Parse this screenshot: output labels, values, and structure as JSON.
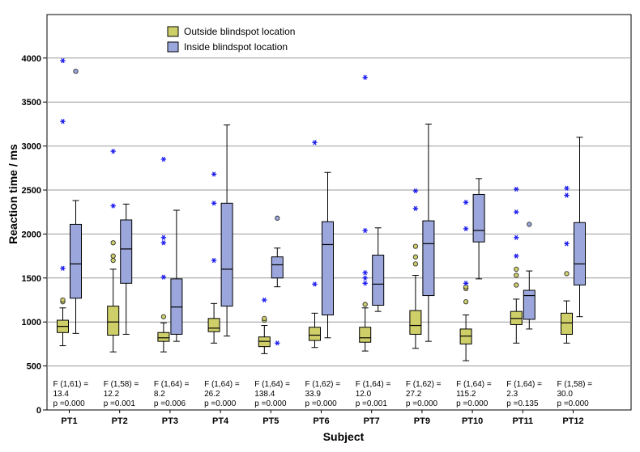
{
  "chart_data": {
    "type": "box",
    "xlabel": "Subject",
    "ylabel": "Reaction time / ms",
    "ylim": [
      0,
      4300
    ],
    "yticks": [
      0,
      500,
      1000,
      1500,
      2000,
      2500,
      3000,
      3500,
      4000
    ],
    "grid": true,
    "legend_position": "top-left",
    "colors": {
      "outside": "#cfcf6a",
      "inside": "#9aa6dc",
      "outlier_star": "#1a1aee"
    },
    "series": [
      {
        "name": "Outside blindspot location",
        "key": "outside"
      },
      {
        "name": "Inside blindspot location",
        "key": "inside"
      }
    ],
    "categories": [
      "PT1",
      "PT2",
      "PT3",
      "PT4",
      "PT5",
      "PT6",
      "PT7",
      "PT9",
      "PT10",
      "PT11",
      "PT12"
    ],
    "boxes": {
      "outside": [
        {
          "min": 730,
          "q1": 880,
          "median": 950,
          "q3": 1020,
          "max": 1160,
          "outliers": [
            1230,
            1250
          ],
          "extremes": [
            1610,
            3280,
            3970
          ]
        },
        {
          "min": 660,
          "q1": 850,
          "median": 1000,
          "q3": 1180,
          "max": 1600,
          "outliers": [
            1700,
            1750,
            1900
          ],
          "extremes": [
            2320,
            2940
          ]
        },
        {
          "min": 660,
          "q1": 780,
          "median": 820,
          "q3": 880,
          "max": 990,
          "outliers": [
            1060
          ],
          "extremes": [
            1510,
            1900,
            1960,
            2850
          ]
        },
        {
          "min": 760,
          "q1": 890,
          "median": 930,
          "q3": 1040,
          "max": 1210,
          "outliers": [],
          "extremes": [
            1700,
            2350,
            2680
          ]
        },
        {
          "min": 640,
          "q1": 720,
          "median": 780,
          "q3": 830,
          "max": 960,
          "outliers": [
            1020,
            1040
          ],
          "extremes": [
            1250
          ]
        },
        {
          "min": 710,
          "q1": 790,
          "median": 850,
          "q3": 940,
          "max": 1100,
          "outliers": [],
          "extremes": [
            1430,
            3040
          ]
        },
        {
          "min": 670,
          "q1": 770,
          "median": 820,
          "q3": 940,
          "max": 1160,
          "outliers": [
            1200
          ],
          "extremes": [
            1440,
            1500,
            1560,
            2040,
            3780
          ]
        },
        {
          "min": 700,
          "q1": 860,
          "median": 960,
          "q3": 1130,
          "max": 1530,
          "outliers": [
            1660,
            1740,
            1860
          ],
          "extremes": [
            2290,
            2490
          ]
        },
        {
          "min": 560,
          "q1": 750,
          "median": 840,
          "q3": 920,
          "max": 1080,
          "outliers": [
            1230,
            1380,
            1400
          ],
          "extremes": [
            1440,
            2060,
            2360
          ]
        },
        {
          "min": 760,
          "q1": 970,
          "median": 1040,
          "q3": 1120,
          "max": 1260,
          "outliers": [
            1420,
            1530,
            1600
          ],
          "extremes": [
            1750,
            1960,
            2250,
            2510
          ]
        },
        {
          "min": 760,
          "q1": 860,
          "median": 990,
          "q3": 1100,
          "max": 1240,
          "outliers": [
            1550
          ],
          "extremes": [
            1890,
            2440,
            2520
          ]
        }
      ],
      "inside": [
        {
          "min": 870,
          "q1": 1270,
          "median": 1660,
          "q3": 2110,
          "max": 2380,
          "outliers": [
            3850
          ],
          "extremes": []
        },
        {
          "min": 860,
          "q1": 1440,
          "median": 1830,
          "q3": 2160,
          "max": 2340,
          "outliers": [],
          "extremes": []
        },
        {
          "min": 780,
          "q1": 860,
          "median": 1170,
          "q3": 1490,
          "max": 2270,
          "outliers": [],
          "extremes": []
        },
        {
          "min": 840,
          "q1": 1180,
          "median": 1600,
          "q3": 2350,
          "max": 3240,
          "outliers": [],
          "extremes": []
        },
        {
          "min": 1400,
          "q1": 1500,
          "median": 1650,
          "q3": 1740,
          "max": 1840,
          "outliers": [
            2180
          ],
          "extremes": [
            760
          ]
        },
        {
          "min": 820,
          "q1": 1080,
          "median": 1880,
          "q3": 2140,
          "max": 2700,
          "outliers": [],
          "extremes": []
        },
        {
          "min": 1120,
          "q1": 1190,
          "median": 1430,
          "q3": 1760,
          "max": 2070,
          "outliers": [],
          "extremes": []
        },
        {
          "min": 780,
          "q1": 1300,
          "median": 1890,
          "q3": 2150,
          "max": 3250,
          "outliers": [],
          "extremes": []
        },
        {
          "min": 1490,
          "q1": 1910,
          "median": 2040,
          "q3": 2450,
          "max": 2630,
          "outliers": [],
          "extremes": []
        },
        {
          "min": 920,
          "q1": 1030,
          "median": 1300,
          "q3": 1360,
          "max": 1580,
          "outliers": [
            2110
          ],
          "extremes": []
        },
        {
          "min": 1060,
          "q1": 1420,
          "median": 1660,
          "q3": 2130,
          "max": 3100,
          "outliers": [],
          "extremes": []
        }
      ]
    },
    "annotations": [
      {
        "f": "F (1,61) =",
        "v": "13.4",
        "p": "p =0.000"
      },
      {
        "f": "F (1,58) =",
        "v": "12.2",
        "p": "p =0.001"
      },
      {
        "f": "F (1,64) =",
        "v": "8.2",
        "p": "p =0.006"
      },
      {
        "f": "F (1,64) =",
        "v": "26.2",
        "p": "p =0.000"
      },
      {
        "f": "F (1,64) =",
        "v": "138.4",
        "p": "p =0.000"
      },
      {
        "f": "F (1,62) =",
        "v": "33.9",
        "p": "p =0.000"
      },
      {
        "f": "F (1,64) =",
        "v": "12.0",
        "p": "p =0.001"
      },
      {
        "f": "F (1,62) =",
        "v": "27.2",
        "p": "p =0.000"
      },
      {
        "f": "F (1,64) =",
        "v": "115.2",
        "p": "p =0.000"
      },
      {
        "f": "F (1,64) =",
        "v": "2.3",
        "p": "p =0.135"
      },
      {
        "f": "F (1,58) =",
        "v": "30.0",
        "p": "p =0.000"
      }
    ]
  }
}
